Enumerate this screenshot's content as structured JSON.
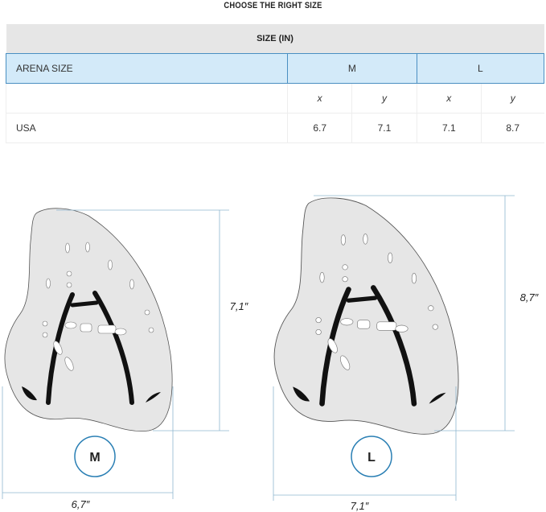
{
  "title": "CHOOSE THE RIGHT SIZE",
  "table": {
    "header": "SIZE (IN)",
    "size_label": "ARENA SIZE",
    "sizes": [
      "M",
      "L"
    ],
    "axes": [
      "x",
      "y",
      "x",
      "y"
    ],
    "rows": [
      {
        "label": "USA",
        "values": [
          "6.7",
          "7.1",
          "7.1",
          "8.7"
        ]
      }
    ]
  },
  "diagram": {
    "medium": {
      "badge": "M",
      "height": "7,1″",
      "width": "6,7″"
    },
    "large": {
      "badge": "L",
      "height": "8,7″",
      "width": "7,1″"
    }
  },
  "colors": {
    "accent": "#2a7fb4",
    "header_bg": "#e6e6e6",
    "size_row_bg": "#d3eaf9",
    "paddle_fill": "#e6e6e6"
  }
}
